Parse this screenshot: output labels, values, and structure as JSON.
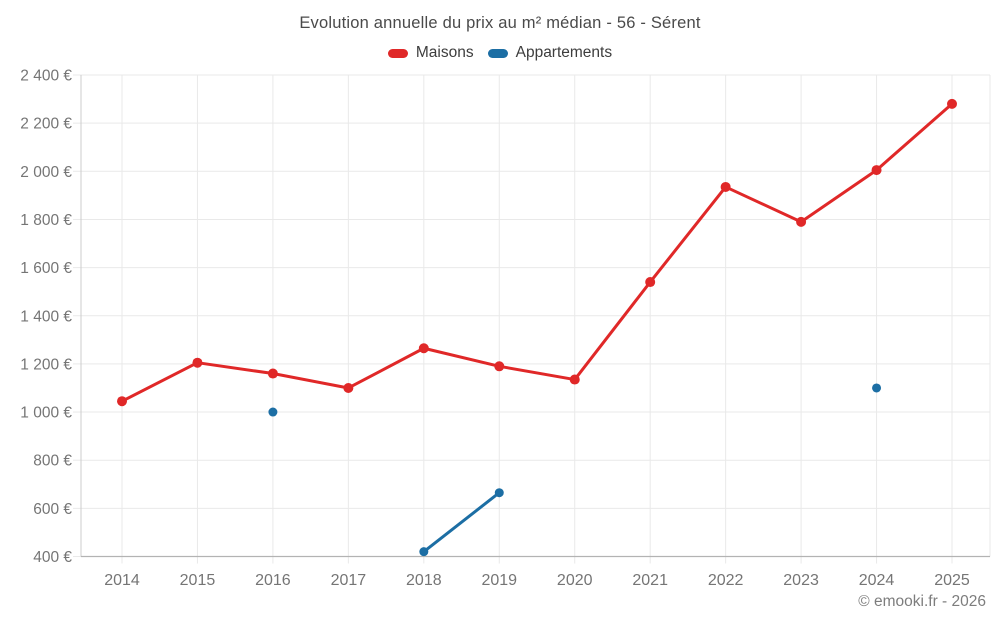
{
  "title": "Evolution annuelle du prix au m² médian - 56 - Sérent",
  "legend": {
    "items": [
      {
        "label": "Maisons",
        "color": "#e02828"
      },
      {
        "label": "Appartements",
        "color": "#1c6ea4"
      }
    ]
  },
  "footer": "© emooki.fr - 2026",
  "chart_data": {
    "type": "line",
    "title": "Evolution annuelle du prix au m² médian - 56 - Sérent",
    "categories": [
      "2014",
      "2015",
      "2016",
      "2017",
      "2018",
      "2019",
      "2020",
      "2021",
      "2022",
      "2023",
      "2024",
      "2025"
    ],
    "series": [
      {
        "name": "Maisons",
        "color": "#e02828",
        "values": [
          1045,
          1205,
          1160,
          1100,
          1265,
          1190,
          1135,
          1540,
          1935,
          1790,
          2005,
          2280
        ]
      },
      {
        "name": "Appartements",
        "color": "#1c6ea4",
        "values": [
          null,
          null,
          1000,
          null,
          420,
          665,
          null,
          null,
          null,
          null,
          1100,
          null
        ]
      }
    ],
    "xlabel": "",
    "ylabel": "",
    "ylim": [
      400,
      2400
    ],
    "y_tick_values": [
      400,
      600,
      800,
      1000,
      1200,
      1400,
      1600,
      1800,
      2000,
      2200,
      2400
    ],
    "y_tick_labels": [
      "400 €",
      "600 €",
      "800 €",
      "1 000 €",
      "1 200 €",
      "1 400 €",
      "1 600 €",
      "1 800 €",
      "2 000 €",
      "2 200 €",
      "2 400 €"
    ],
    "grid": true,
    "legend_position": "top"
  },
  "colors": {
    "background": "#ffffff",
    "grid": "#e9e9e9",
    "axis_x": "#b3b3b3",
    "axis_y": "#cccccc",
    "tick_label": "#757575",
    "title": "#4a4a4a",
    "legend_text": "#3d3d3d",
    "footer": "#7d7d7d"
  }
}
